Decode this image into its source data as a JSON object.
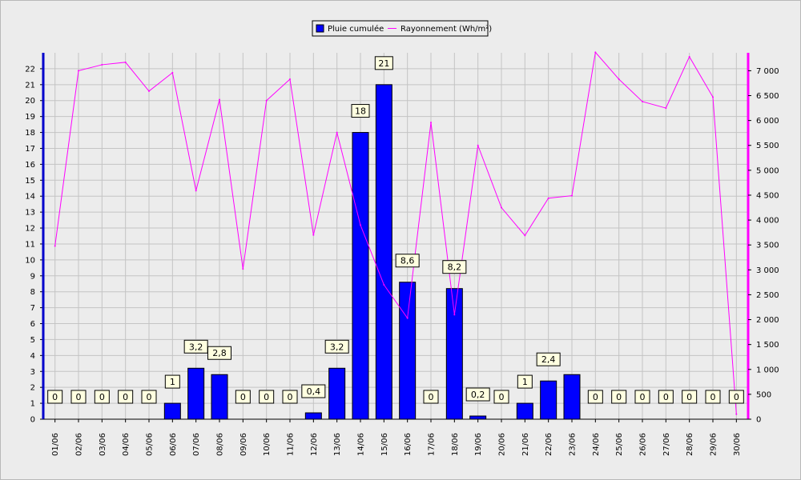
{
  "chart_data": {
    "type": "bar",
    "categories": [
      "01/06",
      "02/06",
      "03/06",
      "04/06",
      "05/06",
      "06/06",
      "07/06",
      "08/06",
      "09/06",
      "10/06",
      "11/06",
      "12/06",
      "13/06",
      "14/06",
      "15/06",
      "16/06",
      "17/06",
      "18/06",
      "19/06",
      "20/06",
      "21/06",
      "22/06",
      "23/06",
      "24/06",
      "25/06",
      "26/06",
      "27/06",
      "28/06",
      "29/06",
      "30/06"
    ],
    "series": [
      {
        "name": "Pluie cumulée",
        "type": "bar",
        "axis": "left",
        "color": "#0000ff",
        "values": [
          0,
          0,
          0,
          0,
          0,
          1,
          3.2,
          2.8,
          0,
          0,
          0,
          0.4,
          3.2,
          18,
          21,
          8.6,
          0,
          8.2,
          0.2,
          0,
          1,
          2.4,
          2.8,
          0,
          0,
          0,
          0,
          0,
          0,
          0
        ],
        "labels": [
          "0",
          "0",
          "0",
          "0",
          "0",
          "1",
          "3,2",
          "2,8",
          "0",
          "0",
          "0",
          "0,4",
          "3,2",
          "18",
          "21",
          "8,6",
          "0",
          "8,2",
          "0,2",
          "0",
          "1",
          "2,4",
          "",
          "0",
          "0",
          "0",
          "0",
          "0",
          "0",
          "0"
        ]
      },
      {
        "name": "Rayonnement (Wh/m²)",
        "type": "line",
        "axis": "right",
        "color": "#ff00ff",
        "values": [
          3480,
          7000,
          7120,
          7170,
          6590,
          6960,
          4590,
          6420,
          3020,
          6400,
          6830,
          3700,
          5760,
          3900,
          2700,
          2030,
          5960,
          2100,
          5500,
          4250,
          3690,
          4440,
          4490,
          7370,
          6830,
          6380,
          6250,
          7280,
          6470,
          100
        ]
      }
    ],
    "ylim_left": [
      0,
      23
    ],
    "ylim_right": [
      0,
      7360
    ],
    "yticks_left": [
      "0",
      "1",
      "2",
      "3",
      "4",
      "5",
      "6",
      "7",
      "8",
      "9",
      "10",
      "11",
      "12",
      "13",
      "14",
      "15",
      "16",
      "17",
      "18",
      "19",
      "20",
      "21",
      "22"
    ],
    "yticks_right": [
      "0",
      "500",
      "1 000",
      "1 500",
      "2 000",
      "2 500",
      "3 000",
      "3 500",
      "4 000",
      "4 500",
      "5 000",
      "5 500",
      "6 000",
      "6 500",
      "7 000"
    ],
    "grid": true,
    "legend_position": "top-center"
  }
}
